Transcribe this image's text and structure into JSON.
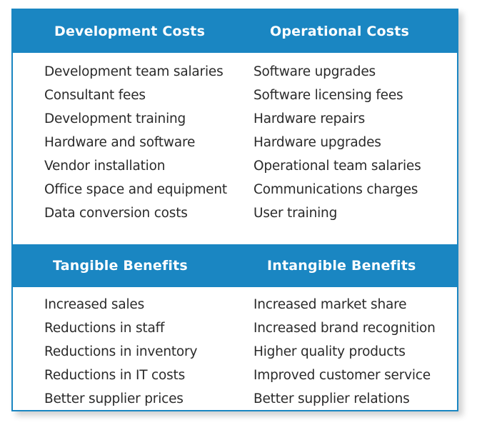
{
  "development_costs": {
    "title": "Development Costs",
    "items": [
      "Development team salaries",
      "Consultant fees",
      "Development training",
      "Hardware and software",
      "Vendor installation",
      "Office space and equipment",
      "Data conversion costs"
    ]
  },
  "operational_costs": {
    "title": "Operational Costs",
    "items": [
      "Software upgrades",
      "Software licensing fees",
      "Hardware repairs",
      "Hardware upgrades",
      "Operational team salaries",
      "Communications charges",
      "User training"
    ]
  },
  "tangible_benefits": {
    "title": "Tangible Benefits",
    "items": [
      "Increased sales",
      "Reductions in staff",
      "Reductions in inventory",
      "Reductions in IT costs",
      "Better supplier prices"
    ]
  },
  "intangible_benefits": {
    "title": "Intangible Benefits",
    "items": [
      "Increased market share",
      "Increased brand recognition",
      "Higher quality products",
      "Improved customer service",
      "Better supplier relations"
    ]
  },
  "colors": {
    "header_blue": "#1a86c2",
    "header_text": "#ffffff",
    "body_text": "#2a2a2a"
  }
}
